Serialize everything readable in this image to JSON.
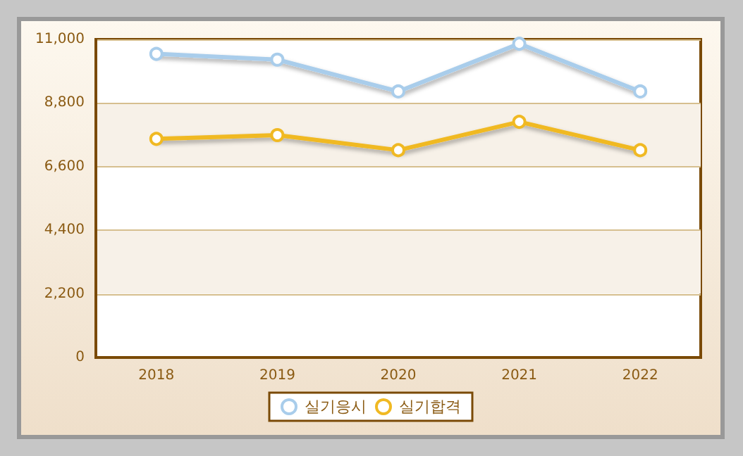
{
  "chart_data": {
    "type": "line",
    "categories": [
      "2018",
      "2019",
      "2020",
      "2021",
      "2022"
    ],
    "series": [
      {
        "name": "실기응시",
        "color": "#a9cdeb",
        "values": [
          10500,
          10300,
          9200,
          10850,
          9200
        ]
      },
      {
        "name": "실기합격",
        "color": "#f0b923",
        "values": [
          7560,
          7690,
          7170,
          8150,
          7170
        ]
      }
    ],
    "ylim": [
      0,
      11000
    ],
    "yticks": [
      {
        "value": 0,
        "label": "0"
      },
      {
        "value": 2200,
        "label": "2,200"
      },
      {
        "value": 4400,
        "label": "4,400"
      },
      {
        "value": 6600,
        "label": "6,600"
      },
      {
        "value": 8800,
        "label": "8,800"
      },
      {
        "value": 11000,
        "label": "11,000"
      }
    ],
    "grid": "y",
    "legend": "bottom",
    "marker": "circle",
    "line_style": "solid"
  }
}
